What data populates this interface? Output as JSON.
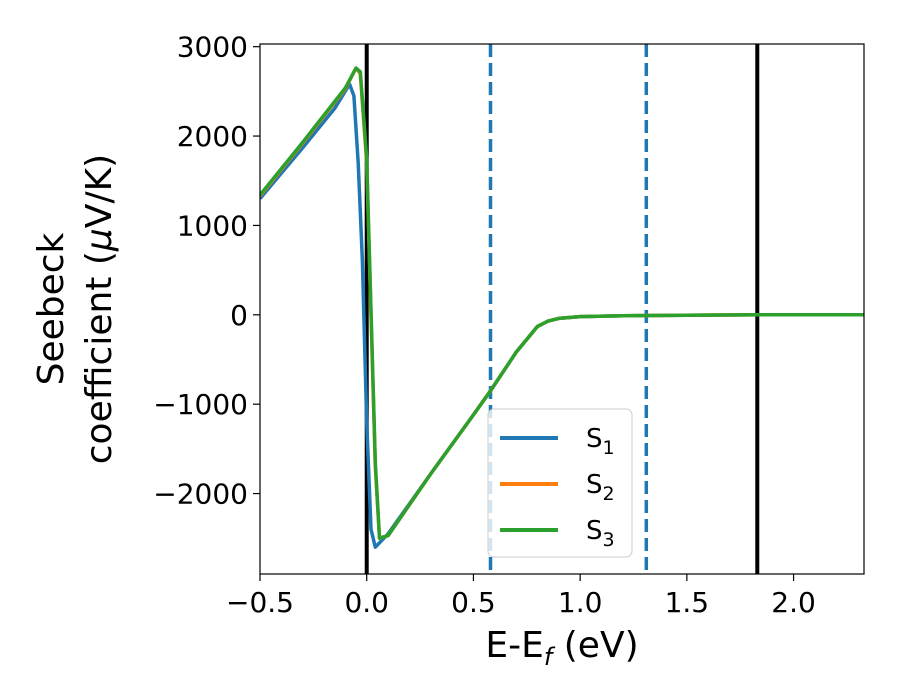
{
  "chart_data": {
    "type": "line",
    "xlabel": {
      "base": "E-E",
      "sub": "f",
      "tail": " (eV)"
    },
    "ylabel": {
      "line1": "Seebeck",
      "line2": "coefficient  (",
      "mu": "μ",
      "line2_tail": "V/K)"
    },
    "xlim": [
      -0.5,
      2.33
    ],
    "ylim": [
      -2900,
      3030
    ],
    "xticks": [
      -0.5,
      0.0,
      0.5,
      1.0,
      1.5,
      2.0
    ],
    "xtick_labels": [
      "−0.5",
      "0.0",
      "0.5",
      "1.0",
      "1.5",
      "2.0"
    ],
    "yticks": [
      -2000,
      -1000,
      0,
      1000,
      2000,
      3000
    ],
    "ytick_labels": [
      "−2000",
      "−1000",
      "0",
      "1000",
      "2000",
      "3000"
    ],
    "grid": false,
    "legend_position": "lower-center",
    "vlines": [
      {
        "x": 0.0,
        "style": "solid",
        "color": "#000000"
      },
      {
        "x": 1.83,
        "style": "solid",
        "color": "#000000"
      },
      {
        "x": 0.58,
        "style": "dashed",
        "color": "#1f77b4"
      },
      {
        "x": 1.31,
        "style": "dashed",
        "color": "#1f77b4"
      }
    ],
    "series": [
      {
        "name": "S",
        "sub": "1",
        "color": "#1f77b4",
        "x": [
          -0.5,
          -0.3,
          -0.15,
          -0.08,
          -0.06,
          -0.04,
          -0.02,
          0.0,
          0.02,
          0.04,
          0.1,
          0.3,
          0.5,
          0.58,
          0.7,
          0.8,
          0.85,
          0.9,
          1.0,
          1.2,
          1.5,
          1.83,
          2.0,
          2.33
        ],
        "y": [
          1300,
          1870,
          2310,
          2580,
          2450,
          1700,
          600,
          -1200,
          -2400,
          -2600,
          -2450,
          -1780,
          -1120,
          -850,
          -420,
          -130,
          -70,
          -40,
          -20,
          -10,
          -5,
          0,
          0,
          0
        ]
      },
      {
        "name": "S",
        "sub": "2",
        "color": "#ff7f0e",
        "x": [
          -0.5,
          -0.3,
          -0.1,
          -0.05,
          -0.03,
          0.0,
          0.02,
          0.04,
          0.06,
          0.1,
          0.3,
          0.5,
          0.58,
          0.7,
          0.8,
          0.85,
          0.9,
          1.0,
          1.2,
          1.5,
          1.83,
          2.0,
          2.33
        ],
        "y": [
          1330,
          1920,
          2530,
          2760,
          2700,
          1700,
          0,
          -1700,
          -2500,
          -2470,
          -1780,
          -1120,
          -850,
          -420,
          -130,
          -70,
          -40,
          -20,
          -10,
          -5,
          0,
          0,
          0
        ]
      },
      {
        "name": "S",
        "sub": "3",
        "color": "#2ca02c",
        "x": [
          -0.5,
          -0.3,
          -0.1,
          -0.05,
          -0.03,
          0.0,
          0.02,
          0.04,
          0.06,
          0.1,
          0.3,
          0.5,
          0.58,
          0.7,
          0.8,
          0.85,
          0.9,
          1.0,
          1.2,
          1.5,
          1.83,
          2.0,
          2.33
        ],
        "y": [
          1340,
          1930,
          2540,
          2760,
          2720,
          1750,
          50,
          -1650,
          -2500,
          -2470,
          -1780,
          -1120,
          -850,
          -420,
          -130,
          -70,
          -40,
          -20,
          -10,
          -5,
          0,
          0,
          0
        ]
      }
    ]
  }
}
